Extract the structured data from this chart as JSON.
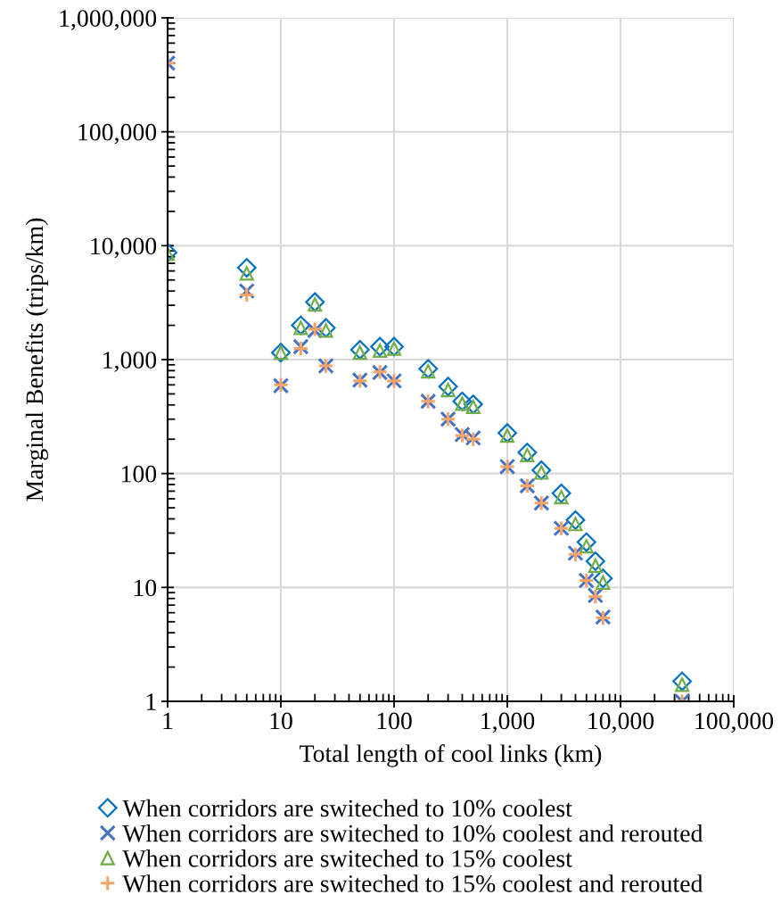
{
  "chart_data": {
    "type": "scatter",
    "xlabel": "Total length of cool links (km)",
    "ylabel": "Marginal Benefits (trips/km)",
    "log": "xy",
    "grid": true,
    "legend": "bottom",
    "x": [
      1,
      5,
      10,
      15,
      20,
      25,
      50,
      75,
      100,
      200,
      300,
      400,
      500,
      1000,
      1500,
      2000,
      3000,
      4000,
      5000,
      6000,
      7000,
      35000
    ],
    "xlim": [
      1,
      100000
    ],
    "xticks": [
      {
        "value": 1,
        "label": "1"
      },
      {
        "value": 10,
        "label": "10"
      },
      {
        "value": 100,
        "label": "100"
      },
      {
        "value": 1000,
        "label": "1,000"
      },
      {
        "value": 10000,
        "label": "10,000"
      },
      {
        "value": 100000,
        "label": "100,000"
      }
    ],
    "ylim": [
      1,
      1000000
    ],
    "yticks": [
      {
        "value": 1,
        "label": "1"
      },
      {
        "value": 10,
        "label": "10"
      },
      {
        "value": 100,
        "label": "100"
      },
      {
        "value": 1000,
        "label": "1,000"
      },
      {
        "value": 10000,
        "label": "10,000"
      },
      {
        "value": 100000,
        "label": "100,000"
      },
      {
        "value": 1000000,
        "label": "1,000,000"
      }
    ],
    "series": [
      {
        "name": "When corridors are switeched to 10% coolest",
        "color": "#0070c0",
        "marker": "diamond",
        "values": [
          8700,
          6400,
          1150,
          2000,
          3200,
          1900,
          1220,
          1300,
          1300,
          830,
          580,
          430,
          405,
          227,
          153,
          107,
          67,
          39,
          25,
          17,
          12,
          1.5
        ]
      },
      {
        "name": "When corridors are switeched to 10% coolest and rerouted",
        "color": "#4472c4",
        "marker": "cross",
        "values": [
          400000,
          4000,
          590,
          1300,
          1800,
          880,
          660,
          770,
          650,
          430,
          300,
          220,
          205,
          115,
          78,
          55,
          33,
          20,
          11.5,
          8.5,
          5.5,
          1
        ]
      },
      {
        "name": "When corridors are switeched to 15% coolest",
        "color": "#70ad47",
        "marker": "triangle",
        "values": [
          8500,
          5700,
          1150,
          1900,
          3050,
          1800,
          1150,
          1200,
          1250,
          790,
          540,
          410,
          385,
          215,
          145,
          102,
          62,
          36,
          23,
          15.5,
          11,
          1.4
        ]
      },
      {
        "name": "When corridors are switeched to 15% coolest and rerouted",
        "color": "#f4a468",
        "marker": "plus",
        "values": [
          400000,
          3700,
          600,
          1250,
          1850,
          880,
          650,
          780,
          650,
          430,
          300,
          215,
          200,
          115,
          78,
          55,
          33,
          19.5,
          11.5,
          8.3,
          5.4,
          1
        ]
      }
    ]
  }
}
